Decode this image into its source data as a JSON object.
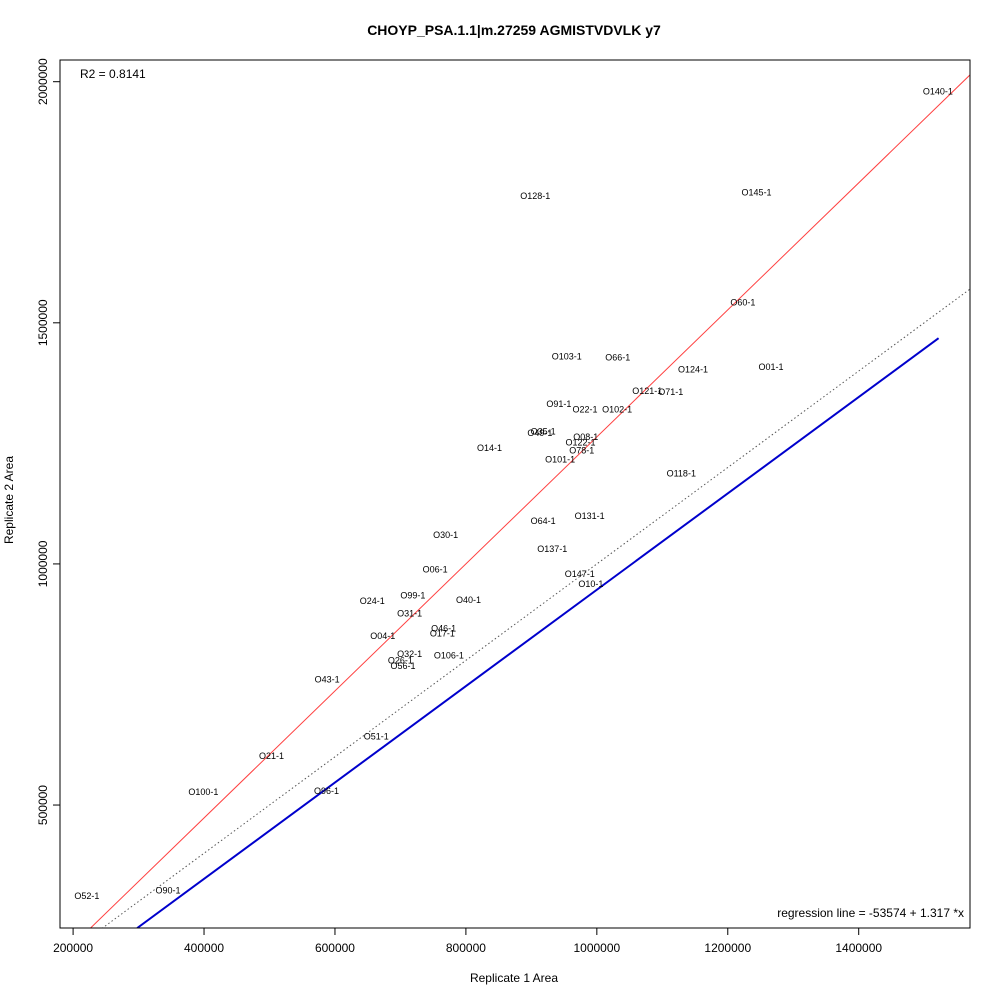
{
  "chart_data": {
    "type": "scatter",
    "title": "CHOYP_PSA.1.1|m.27259 AGMISTVDVLK y7",
    "xlabel": "Replicate 1 Area",
    "ylabel": "Replicate 2 Area",
    "xlim": [
      180000,
      1570000
    ],
    "ylim": [
      245000,
      2045000
    ],
    "x_ticks": [
      200000,
      400000,
      600000,
      800000,
      1000000,
      1200000,
      1400000
    ],
    "x_tick_labels": [
      "200000",
      "400000",
      "600000",
      "800000",
      "1000000",
      "1200000",
      "1400000"
    ],
    "y_ticks": [
      500000,
      1000000,
      1500000,
      2000000
    ],
    "y_tick_labels": [
      "500000",
      "1000000",
      "1500000",
      "2000000"
    ],
    "r2_text": "R2 = 0.8141",
    "regression_text": "regression line = -53574 + 1.317 *x",
    "regression": {
      "intercept": -53574,
      "slope": 1.317,
      "color": "#ff4040"
    },
    "identity_line": {
      "slope": 1,
      "intercept": 0,
      "style": "dotted",
      "color": "#555555"
    },
    "blue_line": {
      "x": [
        298000,
        1522000
      ],
      "y": [
        245000,
        1468000
      ],
      "color": "#0000cc"
    },
    "points": [
      {
        "label": "O140-1",
        "x": 1521000,
        "y": 1980000
      },
      {
        "label": "O145-1",
        "x": 1244000,
        "y": 1770000
      },
      {
        "label": "O128-1",
        "x": 906000,
        "y": 1763000
      },
      {
        "label": "O60-1",
        "x": 1223000,
        "y": 1542000
      },
      {
        "label": "O103-1",
        "x": 954000,
        "y": 1430000
      },
      {
        "label": "O66-1",
        "x": 1032000,
        "y": 1428000
      },
      {
        "label": "O124-1",
        "x": 1147000,
        "y": 1403000
      },
      {
        "label": "O01-1",
        "x": 1266000,
        "y": 1408000
      },
      {
        "label": "O121-1",
        "x": 1077000,
        "y": 1359000
      },
      {
        "label": "O71-1",
        "x": 1113000,
        "y": 1357000
      },
      {
        "label": "O91-1",
        "x": 942000,
        "y": 1332000
      },
      {
        "label": "O22-1",
        "x": 982000,
        "y": 1320000
      },
      {
        "label": "O102-1",
        "x": 1031000,
        "y": 1320000
      },
      {
        "label": "O35-1",
        "x": 918000,
        "y": 1275000
      },
      {
        "label": "O49-1",
        "x": 913000,
        "y": 1272000
      },
      {
        "label": "O08-1",
        "x": 983000,
        "y": 1263000
      },
      {
        "label": "O122-1",
        "x": 975000,
        "y": 1252000
      },
      {
        "label": "O78-1",
        "x": 977000,
        "y": 1235000
      },
      {
        "label": "O14-1",
        "x": 836000,
        "y": 1240000
      },
      {
        "label": "O101-1",
        "x": 944000,
        "y": 1217000
      },
      {
        "label": "O118-1",
        "x": 1129000,
        "y": 1187000
      },
      {
        "label": "O131-1",
        "x": 989000,
        "y": 1099000
      },
      {
        "label": "O64-1",
        "x": 918000,
        "y": 1089000
      },
      {
        "label": "O30-1",
        "x": 769000,
        "y": 1060000
      },
      {
        "label": "O137-1",
        "x": 932000,
        "y": 1031000
      },
      {
        "label": "O06-1",
        "x": 753000,
        "y": 988000
      },
      {
        "label": "O147-1",
        "x": 974000,
        "y": 979000
      },
      {
        "label": "O10-1",
        "x": 991000,
        "y": 958000
      },
      {
        "label": "O99-1",
        "x": 719000,
        "y": 934000
      },
      {
        "label": "O24-1",
        "x": 657000,
        "y": 923000
      },
      {
        "label": "O40-1",
        "x": 804000,
        "y": 925000
      },
      {
        "label": "O31-1",
        "x": 714000,
        "y": 897000
      },
      {
        "label": "O46-1",
        "x": 766000,
        "y": 866000
      },
      {
        "label": "O17-1",
        "x": 764000,
        "y": 856000
      },
      {
        "label": "O04-1",
        "x": 673000,
        "y": 851000
      },
      {
        "label": "O32-1",
        "x": 714000,
        "y": 813000
      },
      {
        "label": "O106-1",
        "x": 774000,
        "y": 810000
      },
      {
        "label": "O26-1",
        "x": 700000,
        "y": 800000
      },
      {
        "label": "O56-1",
        "x": 704000,
        "y": 788000
      },
      {
        "label": "O43-1",
        "x": 588000,
        "y": 760000
      },
      {
        "label": "O51-1",
        "x": 663000,
        "y": 642000
      },
      {
        "label": "O21-1",
        "x": 503000,
        "y": 602000
      },
      {
        "label": "O100-1",
        "x": 399000,
        "y": 527000
      },
      {
        "label": "O96-1",
        "x": 587000,
        "y": 529000
      },
      {
        "label": "O90-1",
        "x": 345000,
        "y": 323000
      },
      {
        "label": "O52-1",
        "x": 221000,
        "y": 311000
      }
    ]
  }
}
